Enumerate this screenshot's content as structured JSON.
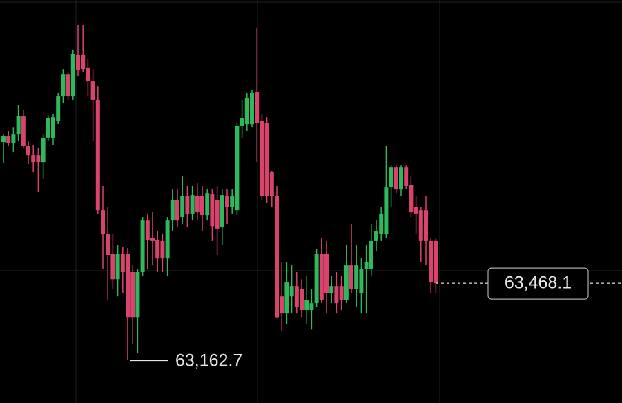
{
  "chart_data": {
    "type": "candlestick",
    "up_color": "#2fb95c",
    "down_color": "#d9446d",
    "ylim": [
      62994,
      64589
    ],
    "open": [
      64027,
      64049,
      64022,
      64057,
      64131,
      64011,
      63975,
      63975,
      63948,
      64044,
      64044,
      64112,
      64207,
      64294,
      64207,
      64371,
      64371,
      64322,
      64267,
      64194,
      63757,
      63662,
      63585,
      63484,
      63585,
      63585,
      63512,
      63334,
      63512,
      63716,
      63648,
      63640,
      63635,
      63566,
      63716,
      63798,
      63730,
      63812,
      63744,
      63812,
      63812,
      63738,
      63820,
      63798,
      63689,
      63812,
      63771,
      63757,
      64090,
      64098,
      64098,
      64226,
      64112,
      64103,
      63907,
      63812,
      63416,
      63348,
      63416,
      63457,
      63444,
      63362,
      63362,
      63389,
      63585,
      63585,
      63430,
      63457,
      63457,
      63403,
      63539,
      63444,
      63430,
      63525,
      63525,
      63635,
      63662,
      63662,
      63847,
      63926,
      63839,
      63926,
      63858,
      63771,
      63757,
      63757,
      63635,
      63635
    ],
    "high": [
      64057,
      64071,
      64084,
      64172,
      64153,
      64030,
      64016,
      64003,
      64057,
      64131,
      64139,
      64221,
      64316,
      64303,
      64393,
      64491,
      64491,
      64357,
      64316,
      64248,
      63853,
      63771,
      63662,
      63621,
      63613,
      63607,
      63539,
      63525,
      63730,
      63744,
      63749,
      63675,
      63662,
      63730,
      63839,
      63839,
      63894,
      63853,
      63853,
      63866,
      63853,
      63839,
      63839,
      63853,
      63839,
      63839,
      63839,
      64103,
      64194,
      64221,
      64234,
      64480,
      64139,
      64125,
      63913,
      63853,
      63553,
      63553,
      63539,
      63512,
      63484,
      63498,
      63444,
      63602,
      63648,
      63635,
      63498,
      63512,
      63498,
      63621,
      63703,
      63621,
      63566,
      63621,
      63703,
      63716,
      63771,
      64011,
      63934,
      63934,
      63934,
      63934,
      63894,
      63812,
      63771,
      63812,
      63648,
      63648
    ],
    "low": [
      63945,
      64011,
      63989,
      64030,
      64003,
      63940,
      63907,
      63831,
      63880,
      64030,
      64016,
      64098,
      64180,
      64194,
      64194,
      64289,
      64303,
      64207,
      64030,
      63744,
      63525,
      63403,
      63444,
      63416,
      63430,
      63162.7,
      63225,
      63193,
      63498,
      63525,
      63539,
      63512,
      63512,
      63498,
      63675,
      63689,
      63703,
      63689,
      63716,
      63716,
      63675,
      63716,
      63635,
      63580,
      63621,
      63703,
      63744,
      63738,
      64044,
      64071,
      64084,
      63948,
      63798,
      63785,
      63771,
      63329,
      63280,
      63307,
      63348,
      63348,
      63334,
      63307,
      63285,
      63375,
      63389,
      63348,
      63389,
      63348,
      63362,
      63389,
      63430,
      63375,
      63348,
      63348,
      63498,
      63594,
      63635,
      63648,
      63771,
      63825,
      63812,
      63839,
      63730,
      63662,
      63553,
      63539,
      63430,
      63430
    ],
    "close": [
      64049,
      64024,
      64057,
      64131,
      64011,
      63975,
      63948,
      63948,
      64044,
      64120,
      64125,
      64207,
      64294,
      64207,
      64376,
      64311,
      64316,
      64267,
      64194,
      63757,
      63662,
      63580,
      63484,
      63585,
      63512,
      63334,
      63334,
      63512,
      63716,
      63640,
      63635,
      63566,
      63566,
      63716,
      63798,
      63716,
      63812,
      63744,
      63817,
      63749,
      63738,
      63825,
      63694,
      63684,
      63817,
      63771,
      63812,
      64090,
      64120,
      64202,
      64221,
      64103,
      63812,
      63812,
      63812,
      63334,
      63348,
      63471,
      63457,
      63375,
      63362,
      63403,
      63389,
      63585,
      63403,
      63430,
      63457,
      63389,
      63403,
      63539,
      63444,
      63539,
      63525,
      63553,
      63635,
      63675,
      63744,
      63847,
      63926,
      63839,
      63926,
      63853,
      63749,
      63744,
      63635,
      63635,
      63471,
      63468.1
    ],
    "low_marker": {
      "value": 63162.7,
      "label": "63,162.7"
    },
    "last_price": {
      "value": 63468.1,
      "label": "63,468.1"
    }
  }
}
